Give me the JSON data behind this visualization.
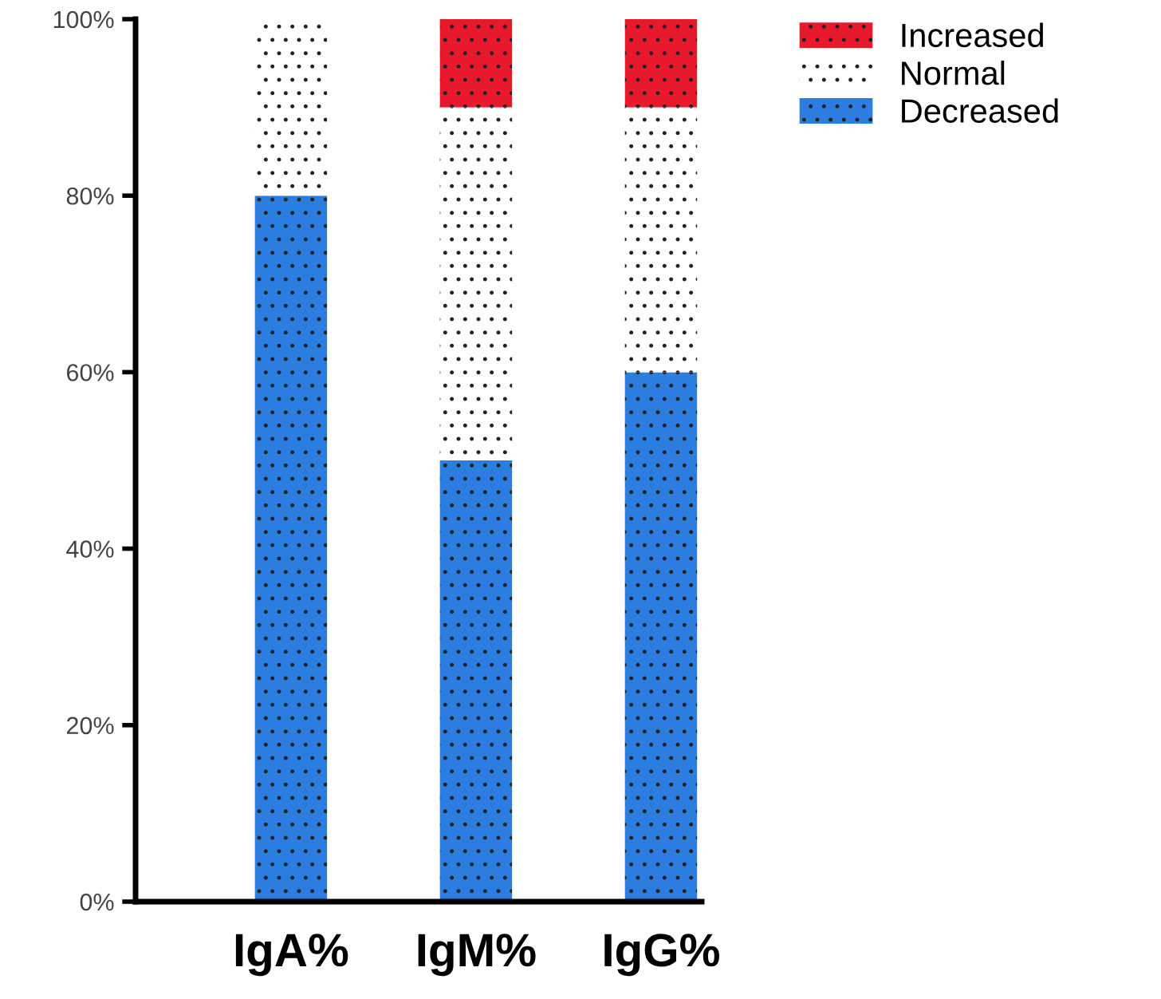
{
  "chart_data": {
    "type": "bar",
    "stacked": true,
    "categories": [
      "IgA%",
      "IgM%",
      "IgG%"
    ],
    "series": [
      {
        "name": "Decreased",
        "color": "#2b7de0",
        "values": [
          80,
          50,
          60
        ]
      },
      {
        "name": "Normal",
        "color": "#ffffff",
        "values": [
          20,
          40,
          30
        ]
      },
      {
        "name": "Increased",
        "color": "#e8192c",
        "values": [
          0,
          10,
          10
        ]
      }
    ],
    "ylim": [
      0,
      100
    ],
    "yticks": [
      {
        "value": 0,
        "label": "0%"
      },
      {
        "value": 20,
        "label": "20%"
      },
      {
        "value": 40,
        "label": "40%"
      },
      {
        "value": 60,
        "label": "60%"
      },
      {
        "value": 80,
        "label": "80%"
      },
      {
        "value": 100,
        "label": "100%"
      }
    ],
    "legend": "top right",
    "grid": false
  }
}
